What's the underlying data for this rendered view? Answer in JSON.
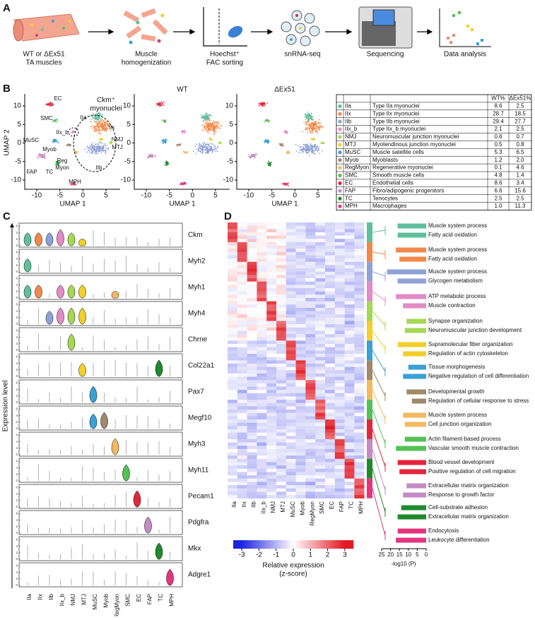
{
  "panel_labels": [
    "A",
    "B",
    "C",
    "D"
  ],
  "workflow": {
    "steps": [
      [
        "WT or ΔEx51",
        "TA muscles"
      ],
      [
        "Muscle",
        "homogenization"
      ],
      [
        "Hoechst⁺",
        "FAC sorting"
      ],
      [
        "snRNA-seq"
      ],
      [
        "Sequencing"
      ],
      [
        "Data analysis"
      ]
    ]
  },
  "umap": {
    "titles": [
      "WT",
      "ΔEx51"
    ],
    "x_label": "UMAP 1",
    "y_label": "UMAP 2",
    "xticks": [
      -10,
      -5,
      0,
      5
    ],
    "yticks": [
      10,
      5,
      0,
      -5,
      -10
    ],
    "annotation": [
      "Ckm⁺",
      "myonuclei"
    ],
    "cluster_labels": [
      "EC",
      "SMC",
      "IIa",
      "IIx",
      "IIx_b",
      "MuSC",
      "Myob",
      "NMJ",
      "MTJ",
      "Reg",
      "Myon",
      "IIb",
      "FAP",
      "TC",
      "MPH"
    ]
  },
  "table": {
    "header": [
      "WT%",
      "ΔEx51%"
    ],
    "rows": [
      [
        "IIa",
        "Type IIa myonuclei",
        "8.6",
        "2.5"
      ],
      [
        "IIx",
        "Type IIx myonuclei",
        "28.7",
        "18.5"
      ],
      [
        "IIb",
        "Type IIb myonuclei",
        "29.4",
        "27.7"
      ],
      [
        "IIx_b",
        "Type IIx_b myonuclei",
        "2.1",
        "2.5"
      ],
      [
        "NMJ",
        "Neuromuscular junction myonuclei",
        "0.6",
        "0.7"
      ],
      [
        "MTJ",
        "Myotendinous junction myonuclei",
        "0.5",
        "0.8"
      ],
      [
        "MuSC",
        "Muscle satellite cells",
        "5.3",
        "6.5"
      ],
      [
        "Myob",
        "Myoblasts",
        "1.2",
        "2.0"
      ],
      [
        "RegMyon",
        "Regenerative myonuclei",
        "0.1",
        "4.6"
      ],
      [
        "SMC",
        "Smooth muscle cells",
        "4.8",
        "1.4"
      ],
      [
        "EC",
        "Endothelial cells",
        "8.6",
        "3.4"
      ],
      [
        "FAP",
        "Fibro/adipogenic progenitors",
        "6.6",
        "15.6"
      ],
      [
        "TC",
        "Tenocytes",
        "2.5",
        "2.5"
      ],
      [
        "MPH",
        "Macrophages",
        "1.0",
        "11.3"
      ]
    ]
  },
  "cluster_colors": [
    "#5fbf9c",
    "#f2894a",
    "#8fa1d6",
    "#e38bc6",
    "#a6d854",
    "#f2cf2a",
    "#3aa0d6",
    "#a08a6b",
    "#f5b961",
    "#55c155",
    "#e3263b",
    "#c38cc4",
    "#1f8a2c",
    "#e3357d"
  ],
  "violin": {
    "genes": [
      "Ckm",
      "Myh2",
      "Myh1",
      "Myh4",
      "Chrne",
      "Col22a1",
      "Pax7",
      "Megf10",
      "Myh3",
      "Myh11",
      "Pecam1",
      "Pdgfra",
      "Mkx",
      "Adgre1"
    ],
    "clusters": [
      "IIa",
      "IIx",
      "IIb",
      "IIx_b",
      "NMJ",
      "MTJ",
      "MuSC",
      "Myob",
      "RegMyon",
      "SMC",
      "EC",
      "FAP",
      "TC",
      "MPH"
    ],
    "y_label": "Expression level",
    "yticks": [
      0,
      2,
      4,
      6
    ]
  },
  "heatmap": {
    "colorbar_ticks": [
      -3,
      -2,
      -1,
      0,
      1,
      2,
      3
    ],
    "colorbar_label": [
      "Relative expression",
      "(z-score)"
    ]
  },
  "go": {
    "x_label": "-log10 (P)",
    "xlim": [
      25,
      0
    ],
    "xticks": [
      25,
      20,
      15,
      10,
      5,
      0
    ],
    "terms": [
      {
        "term": "Muscle system process",
        "value": 16
      },
      {
        "term": "Fatty acid oxidation",
        "value": 16
      },
      {
        "term": "Muscle system process",
        "value": 17
      },
      {
        "term": "Fatty acid oxidation",
        "value": 15
      },
      {
        "term": "Muscle system process",
        "value": 22
      },
      {
        "term": "Glycogen metabolism",
        "value": 16
      },
      {
        "term": "ATP metabolic process",
        "value": 17
      },
      {
        "term": "Muscle contraction",
        "value": 13
      },
      {
        "term": "Synapse organization",
        "value": 11
      },
      {
        "term": "Neuromuscular junction development",
        "value": 12
      },
      {
        "term": "Supramolecular fiber organization",
        "value": 16
      },
      {
        "term": "Regulation of actin cytoskeleton",
        "value": 13
      },
      {
        "term": "Tissue morphogenesis",
        "value": 10
      },
      {
        "term": "Negative regulation of cell differentiation",
        "value": 13
      },
      {
        "term": "Developmental growth",
        "value": 11
      },
      {
        "term": "Regulation of cellular response to stress",
        "value": 8
      },
      {
        "term": "Muscle system process",
        "value": 13
      },
      {
        "term": "Cell junction organization",
        "value": 12
      },
      {
        "term": "Actin filament-based process",
        "value": 12
      },
      {
        "term": "Vascular smooth muscle contraction",
        "value": 17
      },
      {
        "term": "Blood vessel development",
        "value": 16
      },
      {
        "term": "Positive regulation of cell migration",
        "value": 15
      },
      {
        "term": "Extracellular matrix organization",
        "value": 11
      },
      {
        "term": "Response to growth factor",
        "value": 13
      },
      {
        "term": "Cell-substrate adhesion",
        "value": 14
      },
      {
        "term": "Extracellular matrix organization",
        "value": 16
      },
      {
        "term": "Endocytosis",
        "value": 16
      },
      {
        "term": "Leukocyte differentiation",
        "value": 17
      }
    ]
  }
}
